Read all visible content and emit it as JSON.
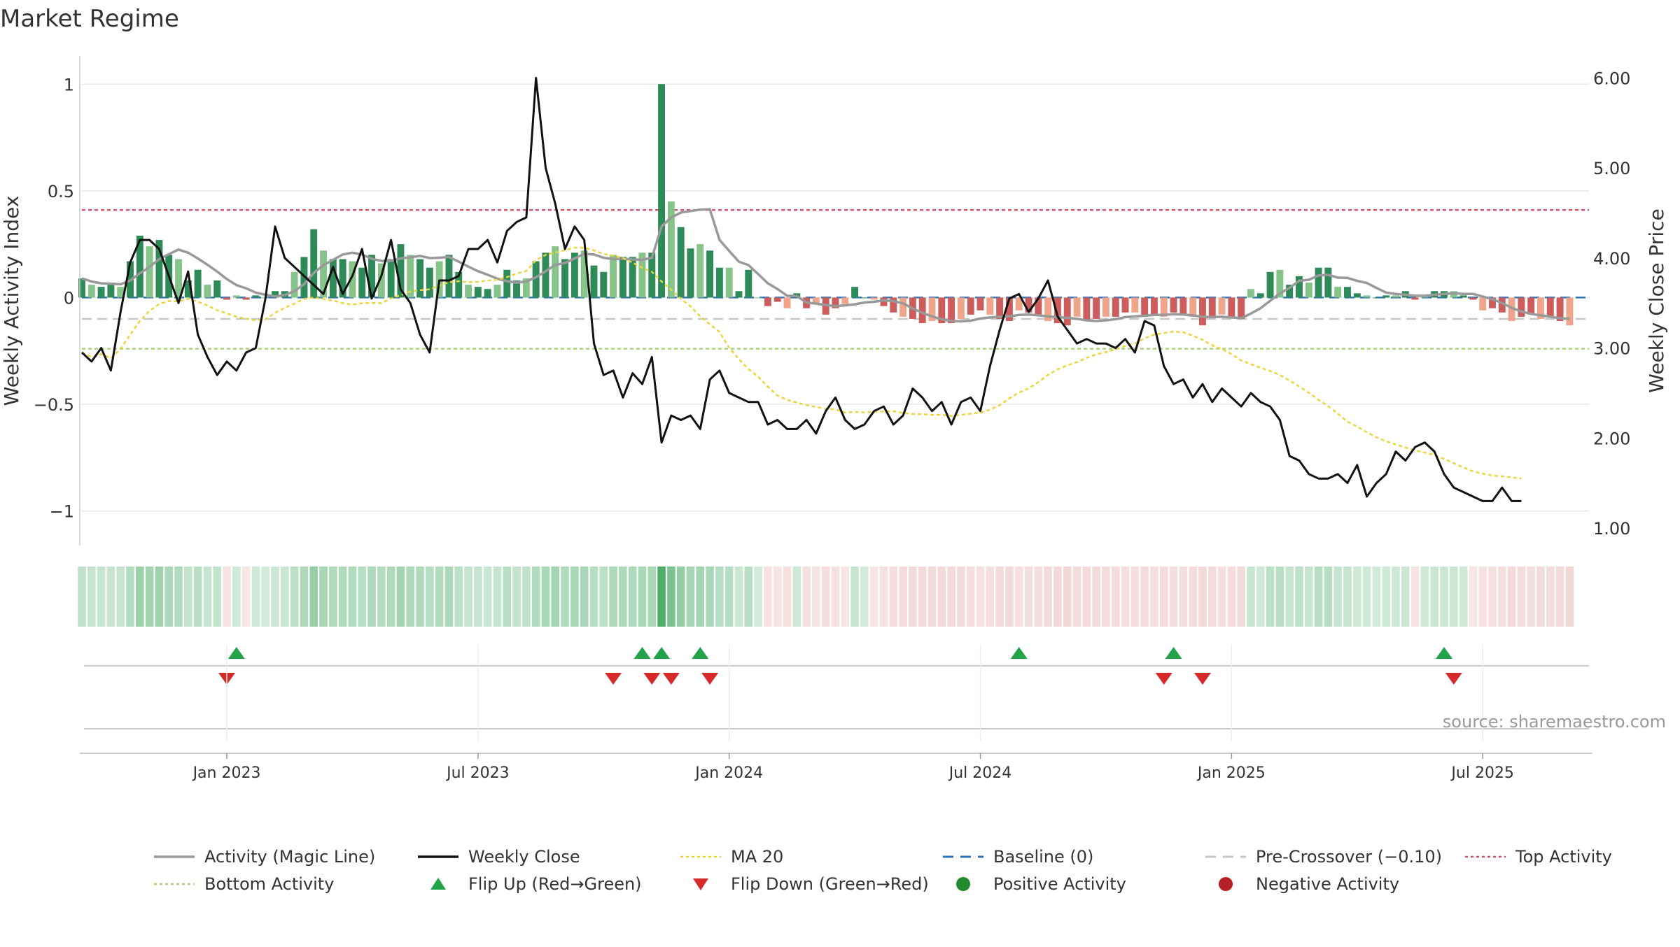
{
  "chart_data": {
    "type": "bar",
    "title": "Market Regime",
    "ylabel_left": "Weekly Activity Index",
    "ylabel_right": "Weekly Close Price",
    "ylim_left": [
      -1.08,
      1.05
    ],
    "ylim_right": [
      1.0,
      6.05
    ],
    "yticks_left": [
      {
        "v": 1,
        "label": "1"
      },
      {
        "v": 0.5,
        "label": "0.5"
      },
      {
        "v": 0,
        "label": "0"
      },
      {
        "v": -0.5,
        "label": "−0.5"
      },
      {
        "v": -1,
        "label": "−1"
      }
    ],
    "yticks_right": [
      {
        "v": 6,
        "label": "6.00"
      },
      {
        "v": 5,
        "label": "5.00"
      },
      {
        "v": 4,
        "label": "4.00"
      },
      {
        "v": 3,
        "label": "3.00"
      },
      {
        "v": 2,
        "label": "2.00"
      },
      {
        "v": 1,
        "label": "1.00"
      }
    ],
    "x_ticks": [
      {
        "week": 15,
        "label": "Jan 2023"
      },
      {
        "week": 41,
        "label": "Jul 2023"
      },
      {
        "week": 67,
        "label": "Jan 2024"
      },
      {
        "week": 93,
        "label": "Jul 2024"
      },
      {
        "week": 119,
        "label": "Jan 2025"
      },
      {
        "week": 145,
        "label": "Jul 2025"
      }
    ],
    "weeks": 157,
    "activity": [
      0.09,
      0.06,
      0.05,
      0.06,
      0.05,
      0.17,
      0.29,
      0.24,
      0.27,
      0.2,
      0.18,
      0.08,
      0.13,
      0.06,
      0.08,
      -0.01,
      0.01,
      -0.01,
      0.01,
      0,
      0.03,
      0.03,
      0.12,
      0.19,
      0.32,
      0.22,
      0.18,
      0.18,
      0.17,
      0.14,
      0.2,
      0.16,
      0.18,
      0.25,
      0.2,
      0.18,
      0.14,
      0.17,
      0.2,
      0.12,
      0.06,
      0.05,
      0.04,
      0.06,
      0.13,
      0.08,
      0.09,
      0.17,
      0.21,
      0.24,
      0.18,
      0.21,
      0.22,
      0.15,
      0.12,
      0.2,
      0.19,
      0.19,
      0.21,
      0.21,
      1.0,
      0.45,
      0.33,
      0.23,
      0.25,
      0.22,
      0.14,
      0.14,
      0.03,
      0.13,
      0,
      -0.04,
      -0.02,
      -0.05,
      0.02,
      -0.05,
      -0.03,
      -0.08,
      -0.05,
      -0.03,
      0.05,
      0,
      -0.01,
      -0.04,
      -0.07,
      -0.09,
      -0.1,
      -0.12,
      -0.11,
      -0.12,
      -0.12,
      -0.1,
      -0.08,
      -0.06,
      -0.08,
      -0.1,
      -0.11,
      -0.06,
      -0.07,
      -0.08,
      -0.11,
      -0.12,
      -0.13,
      -0.09,
      -0.11,
      -0.1,
      -0.09,
      -0.09,
      -0.07,
      -0.07,
      -0.09,
      -0.08,
      -0.09,
      -0.07,
      -0.08,
      -0.09,
      -0.13,
      -0.09,
      -0.08,
      -0.09,
      -0.1,
      0.04,
      0.02,
      0.12,
      0.13,
      0.06,
      0.1,
      0.07,
      0.14,
      0.14,
      0.05,
      0.05,
      0.02,
      0.01,
      0,
      0.01,
      0.01,
      0.03,
      -0.01,
      0.01,
      0.03,
      0.03,
      0.03,
      0.01,
      -0.01,
      -0.06,
      -0.05,
      -0.07,
      -0.11,
      -0.09,
      -0.08,
      -0.1,
      -0.09,
      -0.11,
      -0.13
    ],
    "close": [
      2.95,
      2.85,
      3.0,
      2.75,
      3.4,
      3.95,
      4.2,
      4.2,
      4.1,
      3.8,
      3.5,
      3.85,
      3.15,
      2.9,
      2.7,
      2.85,
      2.75,
      2.95,
      3.0,
      3.55,
      4.35,
      4.0,
      3.9,
      3.8,
      3.7,
      3.6,
      3.9,
      3.6,
      3.8,
      4.1,
      3.55,
      3.8,
      4.2,
      3.65,
      3.5,
      3.15,
      2.95,
      3.75,
      3.75,
      3.8,
      4.1,
      4.1,
      4.2,
      3.95,
      4.3,
      4.4,
      4.45,
      6.0,
      5.0,
      4.6,
      4.1,
      4.35,
      4.2,
      3.05,
      2.7,
      2.75,
      2.45,
      2.72,
      2.6,
      2.9,
      1.95,
      2.25,
      2.2,
      2.25,
      2.1,
      2.65,
      2.75,
      2.5,
      2.45,
      2.4,
      2.4,
      2.15,
      2.2,
      2.1,
      2.1,
      2.2,
      2.05,
      2.3,
      2.45,
      2.2,
      2.1,
      2.15,
      2.3,
      2.35,
      2.15,
      2.25,
      2.55,
      2.45,
      2.3,
      2.4,
      2.15,
      2.4,
      2.45,
      2.3,
      2.8,
      3.2,
      3.55,
      3.6,
      3.4,
      3.55,
      3.75,
      3.35,
      3.2,
      3.05,
      3.1,
      3.05,
      3.05,
      3.0,
      3.1,
      2.95,
      3.3,
      3.25,
      2.8,
      2.6,
      2.65,
      2.45,
      2.6,
      2.4,
      2.55,
      2.45,
      2.35,
      2.5,
      2.4,
      2.35,
      2.2,
      1.8,
      1.75,
      1.6,
      1.55,
      1.55,
      1.6,
      1.5,
      1.7,
      1.35,
      1.5,
      1.6,
      1.85,
      1.75,
      1.9,
      1.95,
      1.85,
      1.6,
      1.45,
      1.4,
      1.35,
      1.3,
      1.3,
      1.45,
      1.3,
      1.3
    ],
    "regime_shading": "positive-negative",
    "flip_up_weeks": [
      16,
      58,
      60,
      64,
      97,
      113,
      141
    ],
    "flip_down_weeks": [
      15,
      55,
      59,
      61,
      65,
      112,
      116,
      142
    ],
    "reference_lines": [
      {
        "name": "Top Activity",
        "value": 0.41
      },
      {
        "name": "Baseline (0)",
        "value": 0
      },
      {
        "name": "Pre-Crossover (−0.10)",
        "value": -0.1
      },
      {
        "name": "Bottom Activity",
        "value": -0.24
      }
    ],
    "legend": {
      "placement": "bottom",
      "items": [
        {
          "label": "Activity (Magic Line)",
          "kind": "line",
          "color": "#999999"
        },
        {
          "label": "Weekly Close",
          "kind": "line",
          "color": "#111111"
        },
        {
          "label": "MA 20",
          "kind": "dotted",
          "color": "#ebd53a"
        },
        {
          "label": "Baseline (0)",
          "kind": "dashed",
          "color": "#2f74b5"
        },
        {
          "label": "Pre-Crossover (−0.10)",
          "kind": "dashed",
          "color": "#c7c7c7"
        },
        {
          "label": "Top Activity",
          "kind": "dotted",
          "color": "#d9536a"
        },
        {
          "label": "Bottom Activity",
          "kind": "dotted",
          "color": "#a7d67a"
        },
        {
          "label": "Flip Up (Red→Green)",
          "kind": "tri-up",
          "color": "#22a34a"
        },
        {
          "label": "Flip Down (Green→Red)",
          "kind": "tri-down",
          "color": "#d62a2a"
        },
        {
          "label": "Positive Activity",
          "kind": "dot",
          "color": "#1f8a2e"
        },
        {
          "label": "Negative Activity",
          "kind": "dot",
          "color": "#b42026"
        }
      ]
    },
    "source_note": "source: sharemaestro.com",
    "colors": {
      "pos_strong": "#2e8b57",
      "pos_light": "#86c48a",
      "neg_strong": "#cd5c5c",
      "neg_light": "#f0a58a",
      "close": "#111111",
      "ma": "#ebd53a",
      "magic": "#999999",
      "grid": "#e8e8e8"
    }
  }
}
